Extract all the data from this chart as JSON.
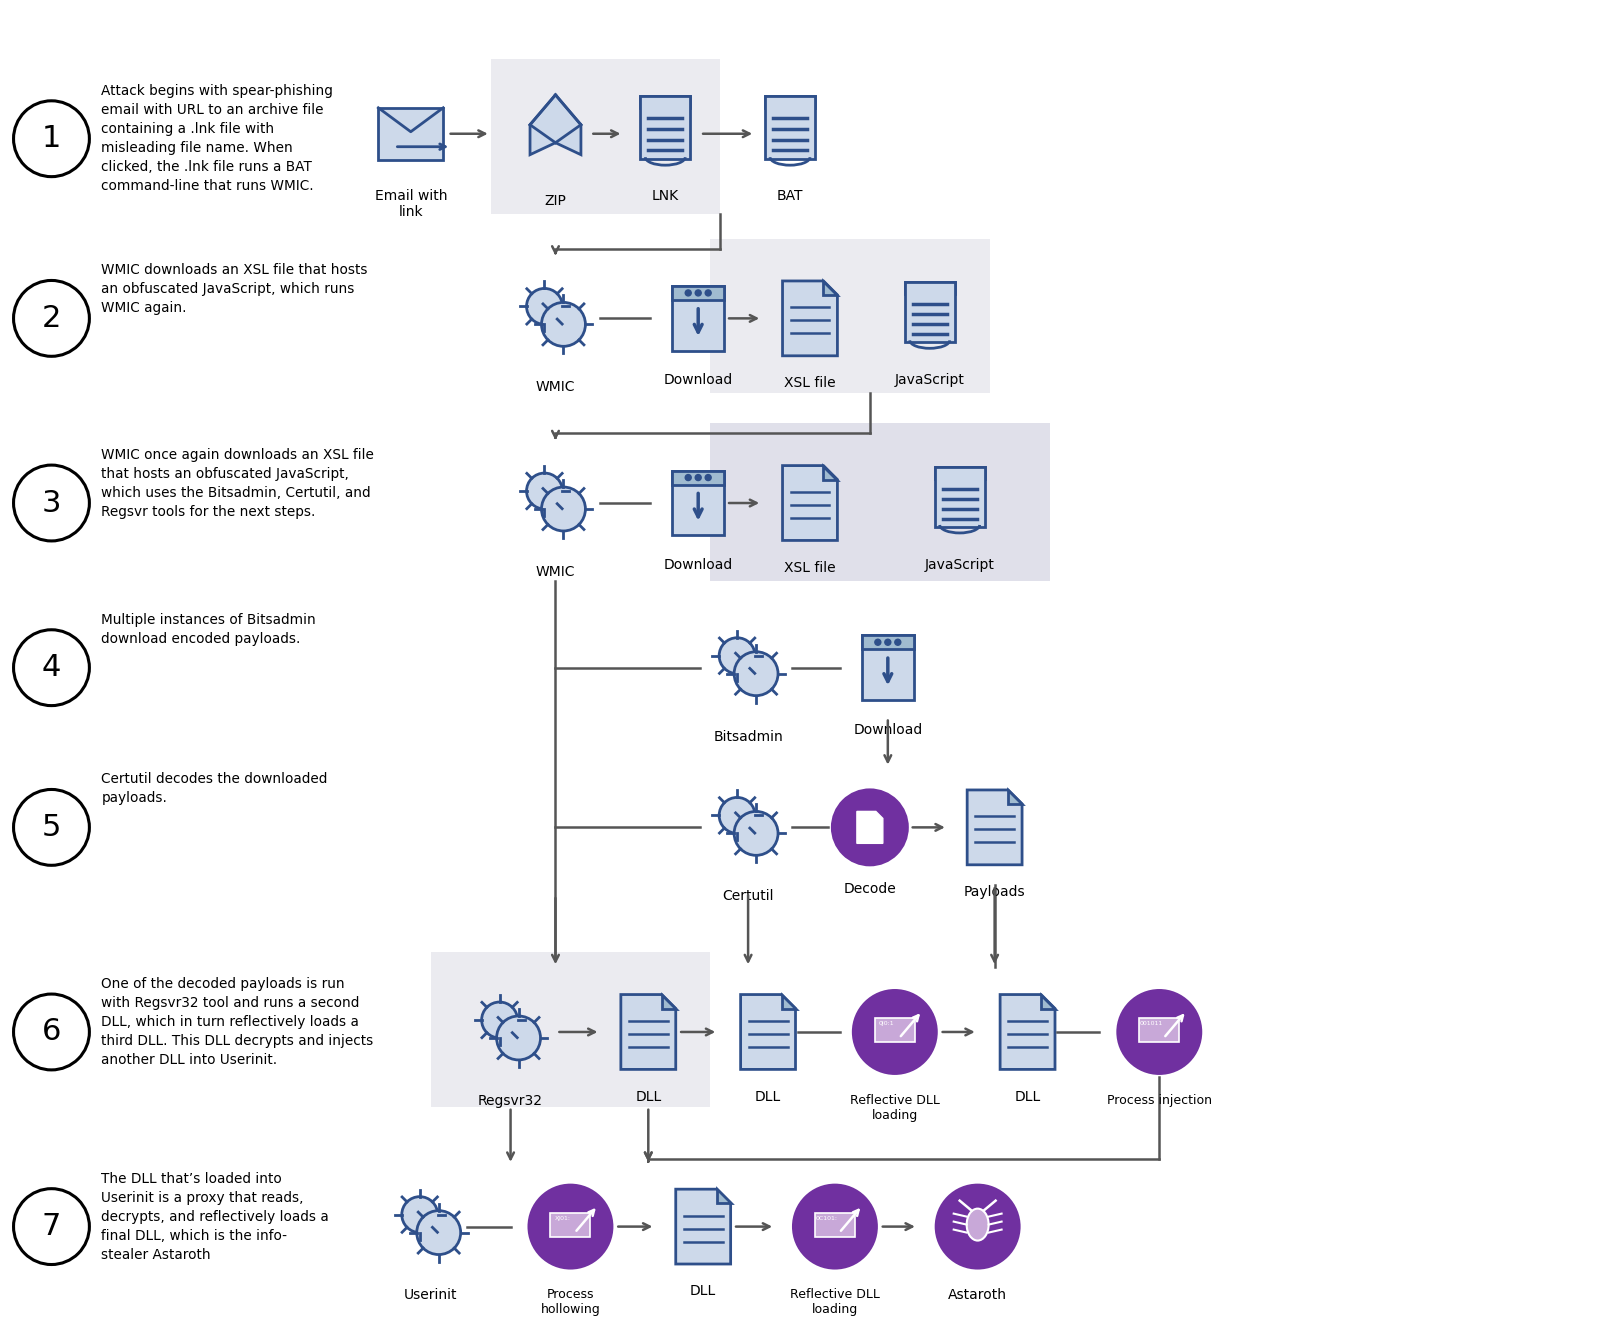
{
  "bg_color": "#ffffff",
  "step_descriptions": [
    {
      "num": "1",
      "text": "Attack begins with spear-phishing\nemail with URL to an archive file\ncontaining a .lnk file with\nmisleading file name. When\nclicked, the .lnk file runs a BAT\ncommand-line that runs WMIC."
    },
    {
      "num": "2",
      "text": "WMIC downloads an XSL file that hosts\nan obfuscated JavaScript, which runs\nWMIC again."
    },
    {
      "num": "3",
      "text": "WMIC once again downloads an XSL file\nthat hosts an obfuscated JavaScript,\nwhich uses the Bitsadmin, Certutil, and\nRegsvr tools for the next steps."
    },
    {
      "num": "4",
      "text": "Multiple instances of Bitsadmin\ndownload encoded payloads."
    },
    {
      "num": "5",
      "text": "Certutil decodes the downloaded\npayloads."
    },
    {
      "num": "6",
      "text": "One of the decoded payloads is run\nwith Regsvr32 tool and runs a second\nDLL, which in turn reflectively loads a\nthird DLL. This DLL decrypts and injects\nanother DLL into Userinit."
    },
    {
      "num": "7",
      "text": "The DLL that’s loaded into\nUserinit is a proxy that reads,\ndecrypts, and reflectively loads a\nfinal DLL, which is the info-\nstealer Astaroth"
    }
  ],
  "icon_fill": "#cdd9ea",
  "icon_stroke": "#2e4f8a",
  "purple_fill": "#7030a0",
  "gray_bg1": "#ebebf0",
  "gray_bg2": "#e0e0ea",
  "arrow_color": "#555555",
  "line_color": "#555555"
}
